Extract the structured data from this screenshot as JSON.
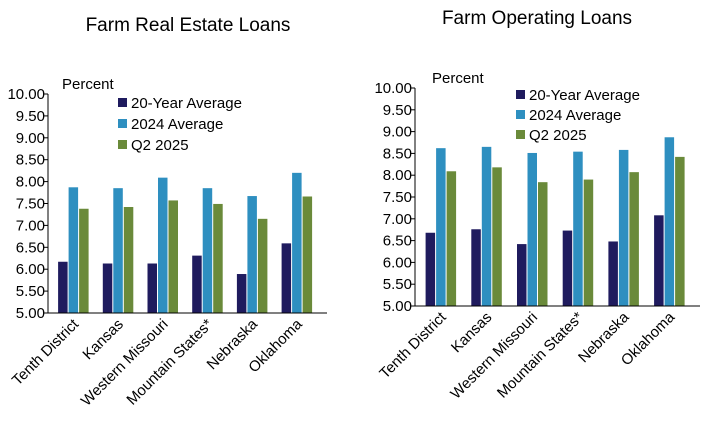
{
  "chart_data": [
    {
      "type": "bar",
      "title": "Farm Real Estate Loans",
      "ylabel": "Percent",
      "xlabel": "",
      "ylim": [
        5.0,
        10.0
      ],
      "yticks": [
        "5.00",
        "5.50",
        "6.00",
        "6.50",
        "7.00",
        "7.50",
        "8.00",
        "8.50",
        "9.00",
        "9.50",
        "10.00"
      ],
      "categories": [
        "Tenth District",
        "Kansas",
        "Western Missouri",
        "Mountain States*",
        "Nebraska",
        "Oklahoma"
      ],
      "series": [
        {
          "name": "20-Year Average",
          "color": "#1f1b5e",
          "values": [
            6.17,
            6.13,
            6.13,
            6.31,
            5.89,
            6.59
          ]
        },
        {
          "name": "2024 Average",
          "color": "#2e8fc0",
          "values": [
            7.87,
            7.85,
            8.09,
            7.85,
            7.67,
            8.2
          ]
        },
        {
          "name": "Q2 2025",
          "color": "#6a8a3a",
          "values": [
            7.38,
            7.42,
            7.57,
            7.49,
            7.15,
            7.66
          ]
        }
      ],
      "legend_position": "top-right"
    },
    {
      "type": "bar",
      "title": "Farm Operating Loans",
      "ylabel": "Percent",
      "xlabel": "",
      "ylim": [
        5.0,
        10.0
      ],
      "yticks": [
        "5.00",
        "5.50",
        "6.00",
        "6.50",
        "7.00",
        "7.50",
        "8.00",
        "8.50",
        "9.00",
        "9.50",
        "10.00"
      ],
      "categories": [
        "Tenth District",
        "Kansas",
        "Western Missouri",
        "Mountain States*",
        "Nebraska",
        "Oklahoma"
      ],
      "series": [
        {
          "name": "20-Year Average",
          "color": "#1f1b5e",
          "values": [
            6.68,
            6.76,
            6.42,
            6.73,
            6.48,
            7.08
          ]
        },
        {
          "name": "2024 Average",
          "color": "#2e8fc0",
          "values": [
            8.62,
            8.65,
            8.51,
            8.54,
            8.58,
            8.87
          ]
        },
        {
          "name": "Q2 2025",
          "color": "#6a8a3a",
          "values": [
            8.09,
            8.18,
            7.84,
            7.9,
            8.07,
            8.42
          ]
        }
      ],
      "legend_position": "top-right"
    }
  ]
}
